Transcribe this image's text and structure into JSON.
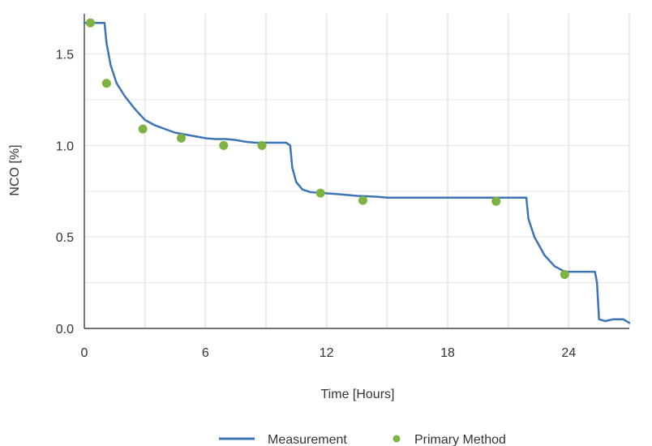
{
  "chart_data": {
    "type": "line",
    "title": "",
    "xlabel": "Time [Hours]",
    "ylabel": "NCO [%]",
    "xlim": [
      0,
      27
    ],
    "ylim": [
      0,
      1.72
    ],
    "x_ticks": [
      0,
      6,
      12,
      18,
      24
    ],
    "x_tick_labels": [
      "0",
      "6",
      "12",
      "18",
      "24"
    ],
    "y_ticks": [
      0,
      0.5,
      1.0,
      1.5
    ],
    "y_tick_labels": [
      "0.0",
      "0.5",
      "1.0",
      "1.5"
    ],
    "grid": true,
    "legend_position": "bottom",
    "colors": {
      "measurement": "#3d74b6",
      "primary_method": "#7cb342",
      "grid": "#e6e6e6",
      "axis": "#222222"
    },
    "series": [
      {
        "name": "Measurement",
        "kind": "line",
        "x": [
          0,
          1.0,
          1.1,
          1.3,
          1.6,
          2.0,
          2.5,
          3.0,
          3.5,
          4.0,
          4.5,
          5.0,
          5.5,
          6.0,
          6.5,
          7.0,
          7.5,
          8.0,
          8.5,
          9.0,
          9.5,
          10.0,
          10.2,
          10.3,
          10.5,
          10.8,
          11.2,
          11.8,
          12.5,
          13.5,
          14.5,
          15.0,
          16.0,
          17.0,
          18.0,
          19.0,
          20.0,
          21.0,
          21.7,
          21.9,
          22.0,
          22.3,
          22.8,
          23.3,
          23.8,
          24.5,
          25.3,
          25.4,
          25.5,
          25.8,
          26.2,
          26.7,
          27.0
        ],
        "y": [
          1.67,
          1.67,
          1.56,
          1.44,
          1.34,
          1.27,
          1.2,
          1.14,
          1.11,
          1.09,
          1.07,
          1.06,
          1.05,
          1.04,
          1.035,
          1.035,
          1.03,
          1.02,
          1.015,
          1.015,
          1.015,
          1.015,
          1.0,
          0.88,
          0.8,
          0.76,
          0.745,
          0.74,
          0.735,
          0.725,
          0.72,
          0.715,
          0.715,
          0.715,
          0.715,
          0.715,
          0.715,
          0.715,
          0.715,
          0.715,
          0.6,
          0.5,
          0.4,
          0.34,
          0.31,
          0.31,
          0.31,
          0.25,
          0.05,
          0.04,
          0.05,
          0.05,
          0.03
        ]
      },
      {
        "name": "Primary Method",
        "kind": "scatter",
        "x": [
          0.3,
          1.1,
          2.9,
          4.8,
          6.9,
          8.8,
          11.7,
          13.8,
          20.4,
          23.8
        ],
        "y": [
          1.67,
          1.34,
          1.09,
          1.04,
          1.0,
          1.0,
          0.74,
          0.7,
          0.695,
          0.295
        ]
      }
    ]
  }
}
